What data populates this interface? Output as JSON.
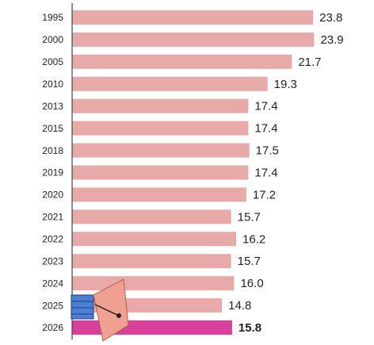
{
  "chart_data": {
    "type": "bar",
    "orientation": "horizontal",
    "categories": [
      "1995",
      "2000",
      "2005",
      "2010",
      "2013",
      "2015",
      "2018",
      "2019",
      "2020",
      "2021",
      "2022",
      "2023",
      "2024",
      "2025",
      "2026"
    ],
    "values": [
      23.8,
      23.9,
      21.7,
      19.3,
      17.4,
      17.4,
      17.5,
      17.4,
      17.2,
      15.7,
      16.2,
      15.7,
      16.0,
      14.8,
      15.8
    ],
    "value_labels": [
      "23.8",
      "23.9",
      "21.7",
      "19.3",
      "17.4",
      "17.4",
      "17.5",
      "17.4",
      "17.2",
      "15.7",
      "16.2",
      "15.7",
      "16.0",
      "14.8",
      "15.8"
    ],
    "colors": [
      "#e8a9a9",
      "#e8a9a9",
      "#e8a9a9",
      "#e8a9a9",
      "#e8a9a9",
      "#e8a9a9",
      "#e8a9a9",
      "#e8a9a9",
      "#e8a9a9",
      "#e8a9a9",
      "#e8a9a9",
      "#e8a9a9",
      "#e8a9a9",
      "#e8a9a9",
      "#d8409c"
    ]
  }
}
